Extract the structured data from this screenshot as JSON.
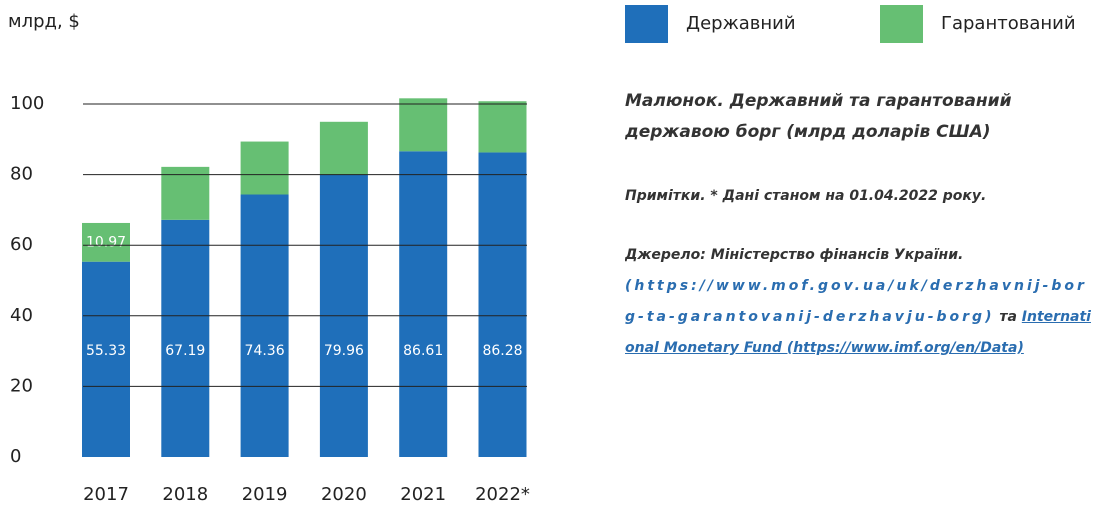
{
  "chart_data": {
    "type": "stacked_bar",
    "y_label": "млрд, $",
    "categories": [
      "2017",
      "2018",
      "2019",
      "2020",
      "2021",
      "2022*"
    ],
    "series": [
      {
        "name": "Державний",
        "color": "#1f6fba",
        "values": [
          55.33,
          67.19,
          74.36,
          79.96,
          86.61,
          86.28
        ]
      },
      {
        "name": "Гарантований",
        "color": "#66bf73",
        "values": [
          10.97,
          15,
          15,
          15,
          15,
          14.5
        ],
        "value_labels": [
          "10.97",
          null,
          null,
          null,
          null,
          null
        ]
      }
    ],
    "ylim": [
      0,
      100
    ],
    "yticks": [
      0,
      20,
      40,
      60,
      80,
      100
    ],
    "grid": true,
    "legend": "top",
    "caption": "Малюнок. Державний та гарантований державою борг (млрд доларів США)",
    "note": "Примітки. * Дані станом на 01.04.2022 року.",
    "source_prefix": "Джерело: Міністерство фінансів України.",
    "source_link1": "(https://www.mof.gov.ua/uk/derzhavnij-borg-ta-garantovanij-derzhavju-borg)",
    "source_and": "та",
    "source_link2": "International Monetary Fund (https://www.imf.org/en/Data)"
  }
}
